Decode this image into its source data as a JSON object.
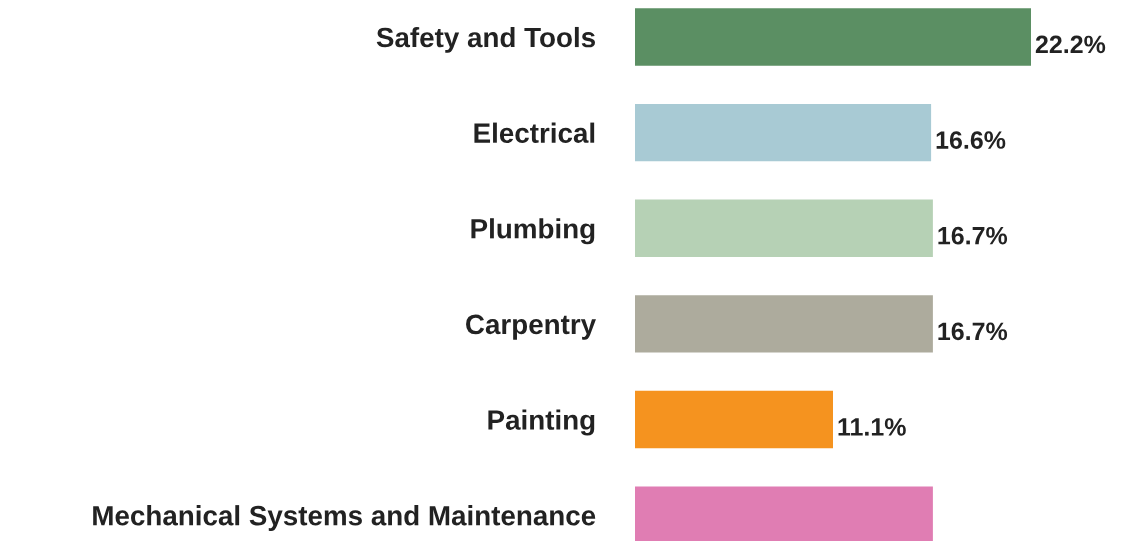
{
  "chart_data": {
    "type": "bar",
    "orientation": "horizontal",
    "categories": [
      "Safety and Tools",
      "Electrical",
      "Plumbing",
      "Carpentry",
      "Painting",
      "Mechanical Systems and Maintenance"
    ],
    "values": [
      22.2,
      16.6,
      16.7,
      16.7,
      11.1,
      16.7
    ],
    "colors": [
      "#5b8f63",
      "#a8cad4",
      "#b6d1b5",
      "#adab9d",
      "#f5931f",
      "#e07db3"
    ],
    "value_labels": [
      "22.2%",
      "16.6%",
      "16.7%",
      "16.7%",
      "11.1%",
      null
    ],
    "grid": false,
    "tick_labels": "y"
  }
}
